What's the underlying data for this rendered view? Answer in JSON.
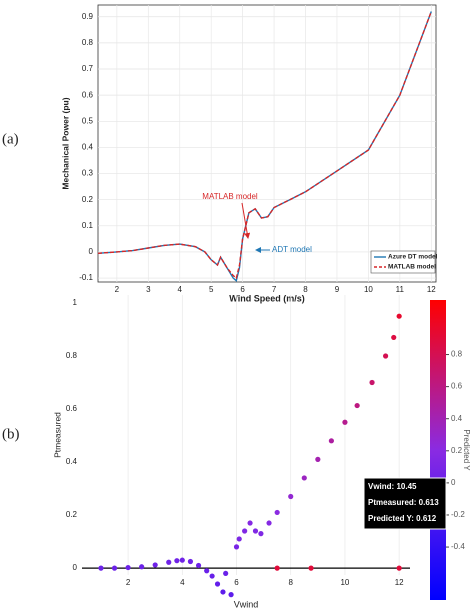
{
  "chart_data": [
    {
      "type": "line",
      "panel_label": "(a)",
      "xlabel": "Wind Speed (m/s)",
      "ylabel": "Mechanical Power (pu)",
      "x": [
        1.4,
        2,
        2.5,
        3,
        3.5,
        4,
        4.5,
        4.8,
        5,
        5.2,
        5.3,
        5.5,
        5.7,
        5.8,
        5.9,
        6.0,
        6.2,
        6.4,
        6.6,
        6.8,
        7,
        7.5,
        8,
        9,
        10,
        11,
        12
      ],
      "series": [
        {
          "name": "Azure DT model",
          "color": "#1f77b4",
          "dashed": false,
          "values": [
            -0.005,
            0,
            0.005,
            0.015,
            0.025,
            0.03,
            0.02,
            0.0,
            -0.03,
            -0.05,
            -0.02,
            -0.06,
            -0.1,
            -0.11,
            -0.06,
            0.05,
            0.15,
            0.165,
            0.13,
            0.135,
            0.17,
            0.2,
            0.23,
            0.31,
            0.39,
            0.6,
            0.92
          ]
        },
        {
          "name": "MATLAB model",
          "color": "#d62728",
          "dashed": true,
          "values": [
            -0.005,
            0,
            0.005,
            0.015,
            0.025,
            0.03,
            0.02,
            0.0,
            -0.03,
            -0.05,
            -0.02,
            -0.06,
            -0.09,
            -0.1,
            -0.05,
            0.05,
            0.15,
            0.165,
            0.13,
            0.135,
            0.17,
            0.2,
            0.23,
            0.31,
            0.39,
            0.6,
            0.92
          ]
        }
      ],
      "annotations": [
        {
          "text": "MATLAB model",
          "color": "#d62728"
        },
        {
          "text": "ADT model",
          "color": "#1f77b4"
        }
      ],
      "xlim": [
        1.4,
        12.15
      ],
      "ylim": [
        -0.115,
        0.945
      ],
      "xticks": [
        2,
        3,
        4,
        5,
        6,
        7,
        8,
        9,
        10,
        11,
        12
      ],
      "yticks": [
        -0.1,
        0,
        0.1,
        0.2,
        0.3,
        0.4,
        0.5,
        0.6,
        0.7,
        0.8,
        0.9
      ],
      "grid": true,
      "legend": "lower right"
    },
    {
      "type": "scatter",
      "panel_label": "(b)",
      "xlabel": "Vwind",
      "ylabel": "Ptmeasured",
      "x": [
        1,
        1.5,
        2,
        2.5,
        3,
        3.5,
        3.8,
        4,
        4.3,
        4.6,
        4.9,
        5.1,
        5.3,
        5.5,
        5.6,
        5.8,
        6,
        6.1,
        6.3,
        6.5,
        6.7,
        6.9,
        7.2,
        7.5,
        8,
        8.5,
        9,
        9.5,
        10,
        10.45,
        11,
        11.5,
        11.8,
        12,
        7.5,
        8.75,
        12
      ],
      "values": [
        0,
        0,
        0.002,
        0.005,
        0.012,
        0.022,
        0.028,
        0.03,
        0.025,
        0.01,
        -0.01,
        -0.03,
        -0.06,
        -0.09,
        -0.02,
        -0.1,
        0.08,
        0.11,
        0.14,
        0.17,
        0.14,
        0.13,
        0.17,
        0.21,
        0.27,
        0.34,
        0.41,
        0.48,
        0.55,
        0.613,
        0.7,
        0.8,
        0.87,
        0.95,
        0,
        0,
        0
      ],
      "color_values": [
        0,
        0,
        0.002,
        0.005,
        0.012,
        0.022,
        0.028,
        0.03,
        0.025,
        0.01,
        -0.01,
        -0.03,
        -0.06,
        -0.09,
        -0.02,
        -0.1,
        0.08,
        0.11,
        0.14,
        0.17,
        0.14,
        0.13,
        0.17,
        0.21,
        0.27,
        0.34,
        0.41,
        0.48,
        0.55,
        0.612,
        0.7,
        0.8,
        0.87,
        0.95,
        0.9,
        0.9,
        0.9
      ],
      "hline": 0,
      "colorbar": {
        "label": "Predicted Y",
        "lim": [
          -0.73,
          1.14
        ],
        "ticks": [
          -0.4,
          -0.2,
          0,
          0.2,
          0.4,
          0.6,
          0.8
        ],
        "colors": [
          "#0000ff",
          "#8a2be2",
          "#ff0000"
        ]
      },
      "tooltip": [
        "Vwind: 10.45",
        "Ptmeasured: 0.613",
        "Predicted Y: 0.612"
      ],
      "xlim": [
        0.3,
        12.4
      ],
      "ylim": [
        -0.026,
        1.03
      ],
      "xticks": [
        2,
        4,
        6,
        8,
        10,
        12
      ],
      "yticks": [
        0,
        0.2,
        0.4,
        0.6,
        0.8,
        1
      ],
      "grid": true
    }
  ]
}
